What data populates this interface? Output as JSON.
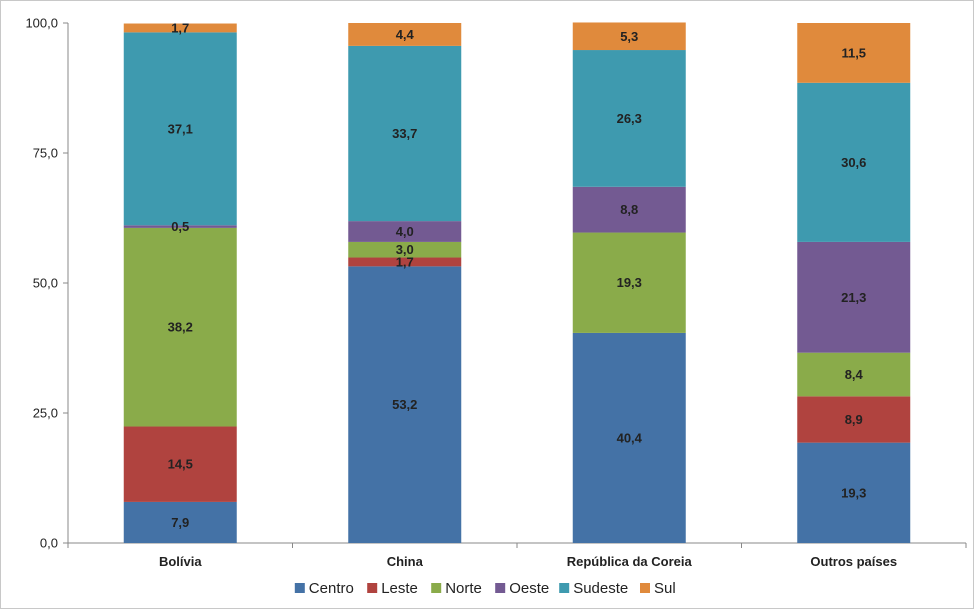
{
  "chart_data": {
    "type": "bar",
    "stacked": true,
    "title": "",
    "xlabel": "",
    "ylabel": "",
    "ylim": [
      0,
      100
    ],
    "yticks": [
      "0,0",
      "25,0",
      "50,0",
      "75,0",
      "100,0"
    ],
    "categories": [
      "Bolívia",
      "China",
      "República da Coreia",
      "Outros países"
    ],
    "legend_position": "bottom",
    "grid": false,
    "series": [
      {
        "name": "Centro",
        "color": "#4472a6",
        "values": [
          7.9,
          53.2,
          40.4,
          19.3
        ],
        "labels": [
          "7,9",
          "53,2",
          "40,4",
          "19,3"
        ]
      },
      {
        "name": "Leste",
        "color": "#b0433f",
        "values": [
          14.5,
          1.7,
          0,
          8.9
        ],
        "labels": [
          "14,5",
          "1,7",
          "",
          "8,9"
        ]
      },
      {
        "name": "Norte",
        "color": "#8aab4a",
        "values": [
          38.2,
          3.0,
          19.3,
          8.4
        ],
        "labels": [
          "38,2",
          "3,0",
          "19,3",
          "8,4"
        ]
      },
      {
        "name": "Oeste",
        "color": "#735a92",
        "values": [
          0.5,
          4.0,
          8.8,
          21.3
        ],
        "labels": [
          "0,5",
          "4,0",
          "8,8",
          "21,3"
        ]
      },
      {
        "name": "Sudeste",
        "color": "#3e9aaf",
        "values": [
          37.1,
          33.7,
          26.3,
          30.6
        ],
        "labels": [
          "37,1",
          "33,7",
          "26,3",
          "30,6"
        ]
      },
      {
        "name": "Sul",
        "color": "#e08a3c",
        "values": [
          1.7,
          4.4,
          5.3,
          11.5
        ],
        "labels": [
          "1,7",
          "4,4",
          "5,3",
          "11,5"
        ]
      }
    ]
  }
}
